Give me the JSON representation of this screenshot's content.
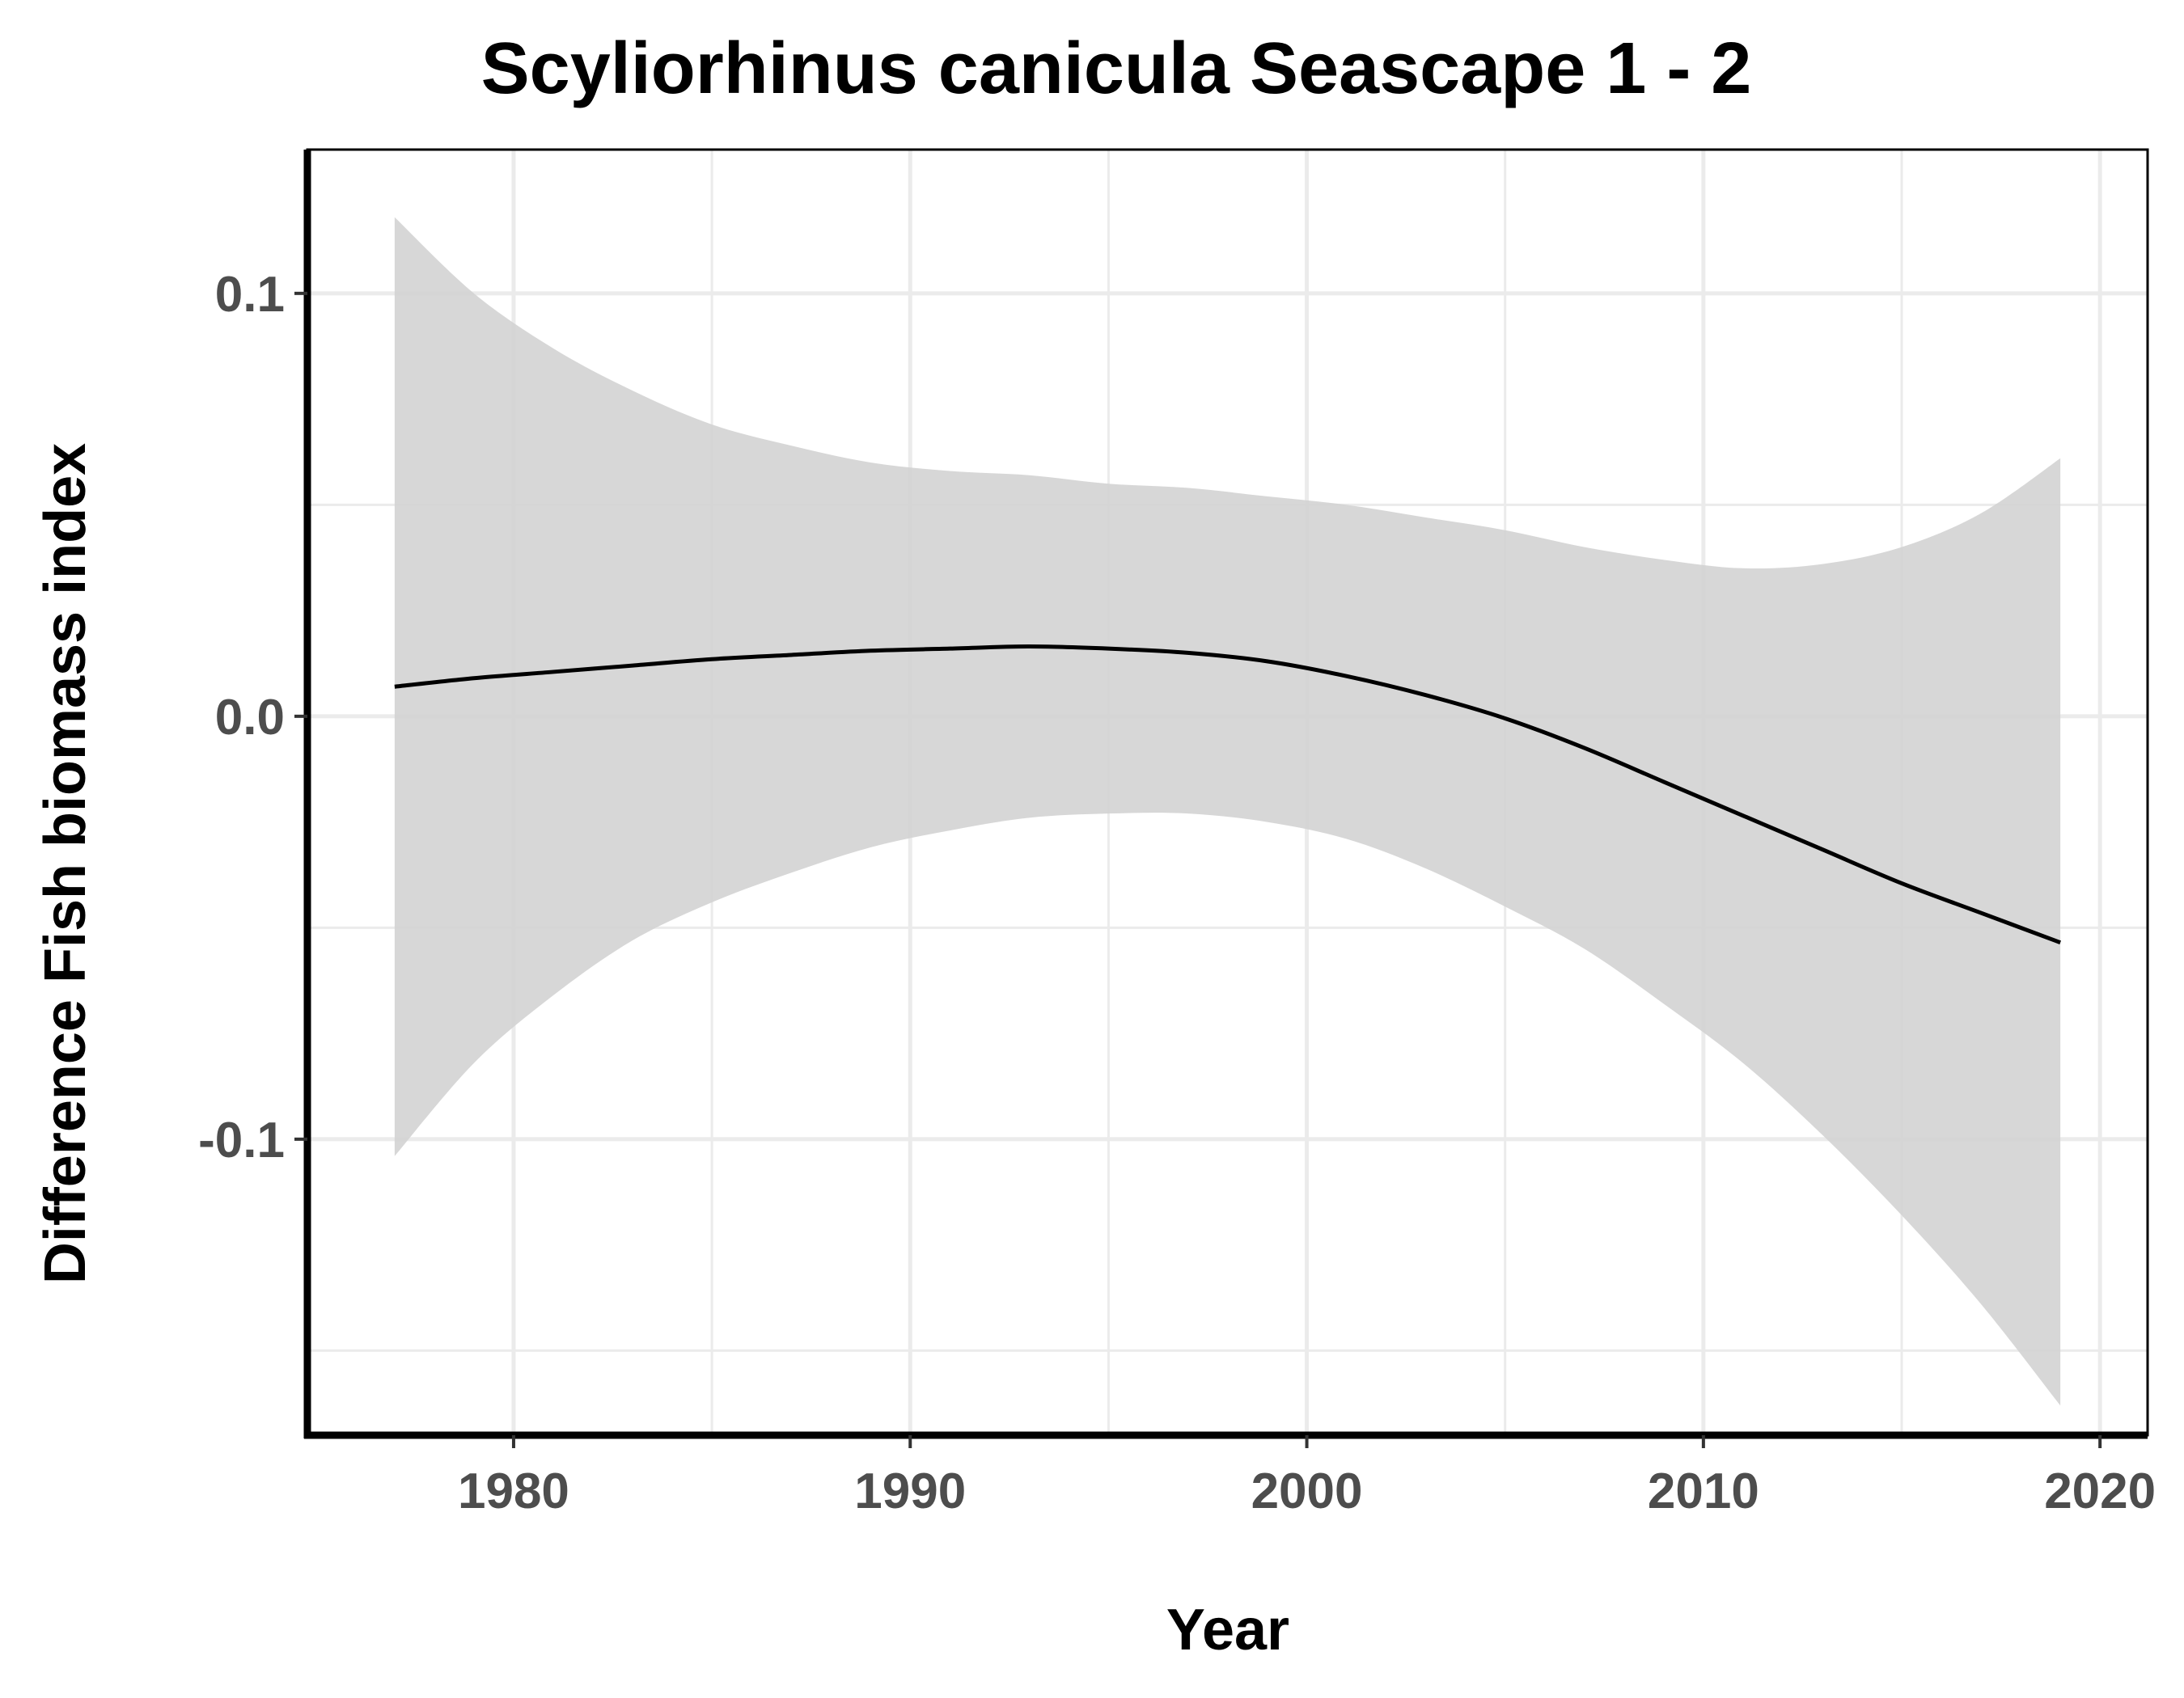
{
  "chart_data": {
    "type": "line",
    "title": "Scyliorhinus canicula Seascape 1 - 2",
    "xlabel": "Year",
    "ylabel": "Difference Fish biomass index",
    "xlim": [
      1974.8,
      2021.2
    ],
    "ylim": [
      -0.17,
      0.134
    ],
    "x_ticks": [
      1980,
      1990,
      2000,
      2010,
      2020
    ],
    "x_tick_labels": [
      "1980",
      "1990",
      "2000",
      "2010",
      "2020"
    ],
    "y_ticks": [
      -0.1,
      0.0,
      0.1
    ],
    "y_tick_labels": [
      "-0.1",
      "0.0",
      "0.1"
    ],
    "x_minor_ticks": [
      1985,
      1995,
      2005,
      2015
    ],
    "y_minor_ticks": [
      -0.15,
      -0.05,
      0.05
    ],
    "grid": true,
    "legend": "none",
    "series": [
      {
        "x": [
          1977,
          1979,
          1981,
          1983,
          1985,
          1987,
          1989,
          1991,
          1993,
          1995,
          1997,
          1999,
          2001,
          2003,
          2005,
          2007,
          2009,
          2011,
          2013,
          2015,
          2017,
          2019
        ],
        "y": [
          0.007,
          0.009,
          0.0105,
          0.012,
          0.0135,
          0.0145,
          0.0155,
          0.016,
          0.0165,
          0.016,
          0.015,
          0.013,
          0.0095,
          0.005,
          -0.0005,
          -0.0075,
          -0.0155,
          -0.0235,
          -0.0315,
          -0.0395,
          -0.0465,
          -0.0535
        ],
        "upper": [
          0.118,
          0.1,
          0.087,
          0.077,
          0.069,
          0.064,
          0.06,
          0.058,
          0.057,
          0.055,
          0.054,
          0.052,
          0.05,
          0.047,
          0.044,
          0.04,
          0.037,
          0.035,
          0.036,
          0.04,
          0.048,
          0.061
        ],
        "lower": [
          -0.104,
          -0.082,
          -0.066,
          -0.053,
          -0.044,
          -0.037,
          -0.031,
          -0.027,
          -0.024,
          -0.023,
          -0.023,
          -0.025,
          -0.029,
          -0.036,
          -0.045,
          -0.055,
          -0.068,
          -0.082,
          -0.099,
          -0.118,
          -0.139,
          -0.163
        ],
        "color": "#000000",
        "band_color": "#d3d3d3"
      }
    ]
  }
}
